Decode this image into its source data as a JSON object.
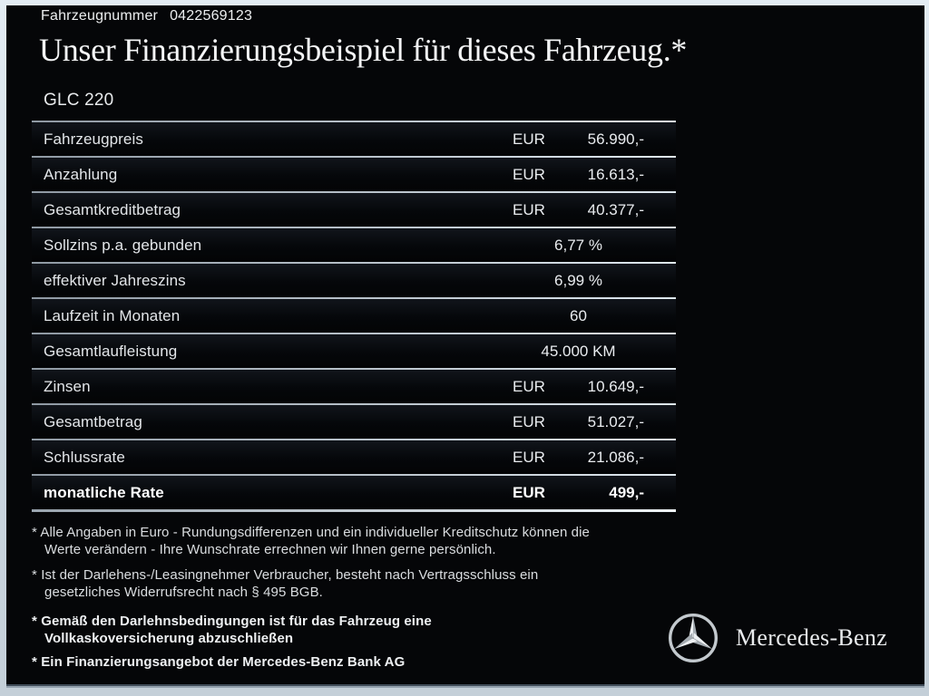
{
  "header": {
    "vehicle_number_label": "Fahrzeugnummer",
    "vehicle_number_value": "0422569123",
    "title": "Unser Finanzierungsbeispiel für dieses Fahrzeug.*",
    "model": "GLC 220"
  },
  "table": {
    "rows": [
      {
        "label": "Fahrzeugpreis",
        "currency": "EUR",
        "value": "56.990,-"
      },
      {
        "label": "Anzahlung",
        "currency": "EUR",
        "value": "16.613,-"
      },
      {
        "label": "Gesamtkreditbetrag",
        "currency": "EUR",
        "value": "40.377,-"
      },
      {
        "label": "Sollzins p.a. gebunden",
        "currency": "",
        "value": "6,77 %"
      },
      {
        "label": "effektiver Jahreszins",
        "currency": "",
        "value": "6,99 %"
      },
      {
        "label": "Laufzeit in Monaten",
        "currency": "",
        "value": "60"
      },
      {
        "label": "Gesamtlaufleistung",
        "currency": "",
        "value": "45.000 KM"
      },
      {
        "label": "Zinsen",
        "currency": "EUR",
        "value": "10.649,-"
      },
      {
        "label": "Gesamtbetrag",
        "currency": "EUR",
        "value": "51.027,-"
      },
      {
        "label": "Schlussrate",
        "currency": "EUR",
        "value": "21.086,-"
      },
      {
        "label": "monatliche Rate",
        "currency": "EUR",
        "value": "499,-",
        "bold": true
      }
    ]
  },
  "footnotes": [
    {
      "marker": "*",
      "bold": false,
      "lines": [
        "Alle Angaben in Euro - Rundungsdifferenzen und ein individueller Kreditschutz können die",
        "Werte verändern - Ihre Wunschrate errechnen wir Ihnen gerne persönlich."
      ]
    },
    {
      "marker": "*",
      "bold": false,
      "lines": [
        "Ist der Darlehens-/Leasingnehmer Verbraucher, besteht nach Vertragsschluss ein",
        "gesetzliches Widerrufsrecht nach § 495 BGB."
      ]
    },
    {
      "marker": "*",
      "bold": true,
      "lines": [
        "Gemäß den Darlehnsbedingungen ist für das Fahrzeug eine",
        "Vollkaskoversicherung abzuschließen"
      ]
    },
    {
      "marker": "*",
      "bold": true,
      "lines": [
        "Ein Finanzierungsangebot der Mercedes-Benz Bank AG"
      ]
    }
  ],
  "brand": {
    "logo_icon": "mercedes-star-icon",
    "name": "Mercedes-Benz"
  },
  "colors": {
    "panel_bg": "#050608",
    "text": "#e6e8ea",
    "divider": "#b9c2cb",
    "frame_border": "#ccd7e0",
    "star_silver": "#c3c9ce"
  }
}
